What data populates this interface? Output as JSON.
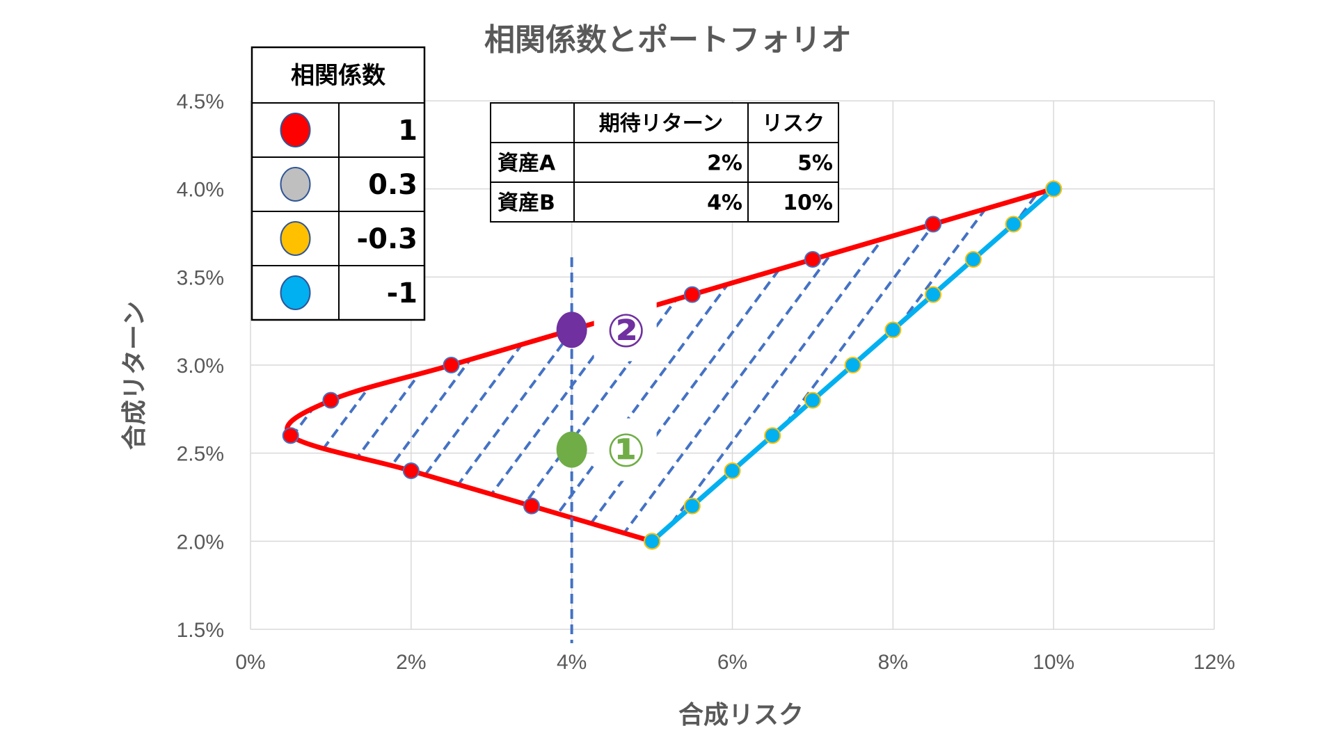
{
  "chart_data": {
    "type": "line",
    "title": "相関係数とポートフォリオ",
    "xlabel": "合成リスク",
    "ylabel": "合成リターン",
    "xlim": [
      0,
      12
    ],
    "ylim": [
      1.5,
      4.5
    ],
    "x_ticks": [
      "0%",
      "2%",
      "4%",
      "6%",
      "8%",
      "10%",
      "12%"
    ],
    "y_ticks": [
      "1.5%",
      "2.0%",
      "2.5%",
      "3.0%",
      "3.5%",
      "4.0%",
      "4.5%"
    ],
    "grid": true,
    "series": [
      {
        "color": "#ff0000",
        "marker_color": "#ff0000",
        "points": [
          [
            5.0,
            2.0
          ],
          [
            3.5,
            2.2
          ],
          [
            2.0,
            2.4
          ],
          [
            0.5,
            2.6
          ],
          [
            1.0,
            2.8
          ],
          [
            2.5,
            3.0
          ],
          [
            4.0,
            3.2
          ],
          [
            5.5,
            3.4
          ],
          [
            7.0,
            3.6
          ],
          [
            8.5,
            3.8
          ],
          [
            10.0,
            4.0
          ]
        ]
      },
      {
        "color": "#00b0f0",
        "marker_color": "#00b0f0",
        "points": [
          [
            5.0,
            2.0
          ],
          [
            5.5,
            2.2
          ],
          [
            6.0,
            2.4
          ],
          [
            6.5,
            2.6
          ],
          [
            7.0,
            2.8
          ],
          [
            7.5,
            3.0
          ],
          [
            8.0,
            3.2
          ],
          [
            8.5,
            3.4
          ],
          [
            9.0,
            3.6
          ],
          [
            9.5,
            3.8
          ],
          [
            10.0,
            4.0
          ]
        ]
      }
    ],
    "vertical_line_x": 4.0,
    "highlight_points": [
      {
        "label": "②",
        "x": 4.0,
        "y": 3.2,
        "color": "#7030a0"
      },
      {
        "label": "①",
        "x": 4.0,
        "y": 2.52,
        "color": "#70ad47"
      }
    ],
    "hatch_color": "#4472c4"
  },
  "legend_table": {
    "header": "相関係数",
    "rows": [
      {
        "color": "#ff0000",
        "value": "1"
      },
      {
        "color": "#bfbfbf",
        "value": "0.3"
      },
      {
        "color": "#ffc000",
        "value": "-0.3"
      },
      {
        "color": "#00b0f0",
        "value": "-1"
      }
    ]
  },
  "asset_table": {
    "headers": [
      "",
      "期待リターン",
      "リスク"
    ],
    "rows": [
      [
        "資産A",
        "2%",
        "5%"
      ],
      [
        "資産B",
        "4%",
        "10%"
      ]
    ]
  }
}
